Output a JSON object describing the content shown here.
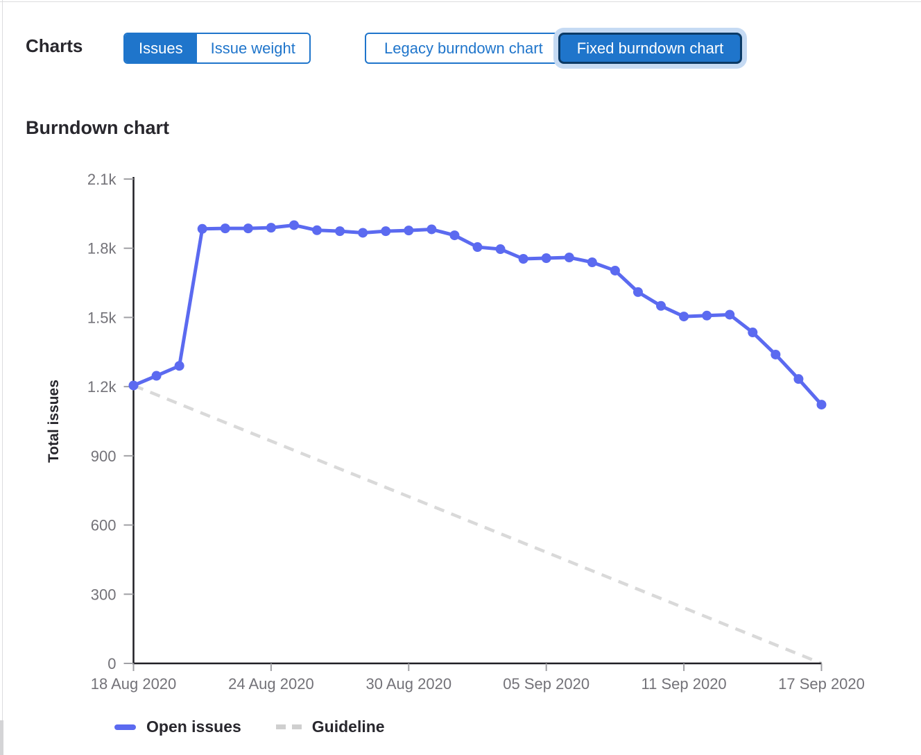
{
  "header": {
    "charts_label": "Charts",
    "metric_toggle": {
      "options": [
        {
          "label": "Issues",
          "selected": true
        },
        {
          "label": "Issue weight",
          "selected": false
        }
      ]
    },
    "chart_type_toggle": {
      "options": [
        {
          "label": "Legacy burndown chart",
          "selected": false
        },
        {
          "label": "Fixed burndown chart",
          "selected": true,
          "focused": true
        }
      ]
    }
  },
  "section": {
    "title": "Burndown chart"
  },
  "colors": {
    "accent_blue": "#1f75cb",
    "selected_button_border": "#0b3a66",
    "focus_halo": "#c5daf3",
    "open_issues_line": "#5b6af0",
    "guideline_gray": "#d9d9d9",
    "axis_line": "#1f1e24",
    "tick_mark": "#a0a0a4",
    "tick_text": "#737278",
    "heading_text": "#28272d"
  },
  "chart_data": {
    "type": "line",
    "title": "Burndown chart",
    "xlabel": "",
    "ylabel": "Total issues",
    "ylim": [
      0,
      2100
    ],
    "grid": false,
    "legend_position": "bottom",
    "y_ticks": [
      0,
      300,
      600,
      900,
      1200,
      1500,
      1800,
      2100
    ],
    "y_tick_labels": [
      "0",
      "300",
      "600",
      "900",
      "1.2k",
      "1.5k",
      "1.8k",
      "2.1k"
    ],
    "x_tick_labels": [
      "18 Aug 2020",
      "24 Aug 2020",
      "30 Aug 2020",
      "05 Sep 2020",
      "11 Sep 2020",
      "17 Sep 2020"
    ],
    "x_tick_day_indices": [
      0,
      6,
      12,
      18,
      24,
      30
    ],
    "x_range_days": 30,
    "dates": [
      "18 Aug 2020",
      "19 Aug 2020",
      "20 Aug 2020",
      "21 Aug 2020",
      "22 Aug 2020",
      "23 Aug 2020",
      "24 Aug 2020",
      "25 Aug 2020",
      "26 Aug 2020",
      "27 Aug 2020",
      "28 Aug 2020",
      "29 Aug 2020",
      "30 Aug 2020",
      "31 Aug 2020",
      "01 Sep 2020",
      "02 Sep 2020",
      "03 Sep 2020",
      "04 Sep 2020",
      "05 Sep 2020",
      "06 Sep 2020",
      "07 Sep 2020",
      "08 Sep 2020",
      "09 Sep 2020",
      "10 Sep 2020",
      "11 Sep 2020",
      "12 Sep 2020",
      "13 Sep 2020",
      "14 Sep 2020",
      "15 Sep 2020",
      "16 Sep 2020",
      "17 Sep 2020"
    ],
    "series": [
      {
        "name": "Open issues",
        "style": "solid-with-markers",
        "color": "#5b6af0",
        "values": [
          1205,
          1247,
          1290,
          1884,
          1886,
          1886,
          1889,
          1900,
          1878,
          1874,
          1867,
          1874,
          1877,
          1882,
          1856,
          1805,
          1796,
          1754,
          1757,
          1760,
          1739,
          1703,
          1610,
          1550,
          1504,
          1508,
          1512,
          1435,
          1339,
          1233,
          1122
        ]
      },
      {
        "name": "Guideline",
        "style": "dashed",
        "color": "#d9d9d9",
        "start_value": 1205,
        "end_value": 0
      }
    ]
  }
}
